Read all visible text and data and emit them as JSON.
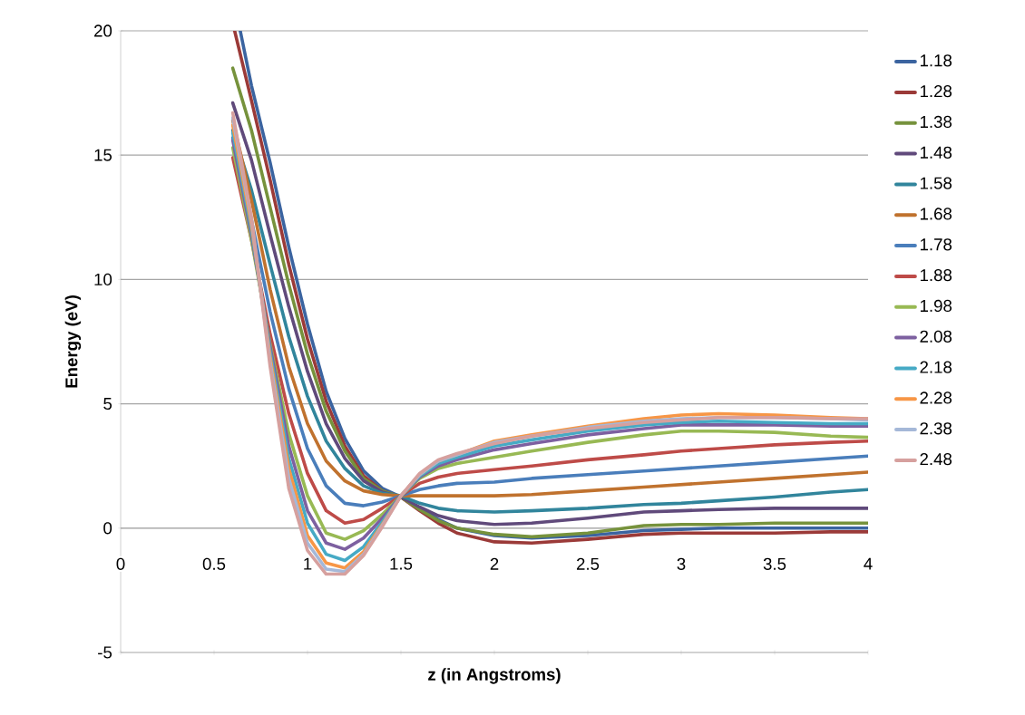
{
  "chart_data": {
    "type": "line",
    "xlabel": "z (in Angstroms)",
    "ylabel": "Energy (eV)",
    "xlim": [
      0,
      4
    ],
    "ylim": [
      -5,
      20
    ],
    "xticks": [
      0,
      0.5,
      1,
      1.5,
      2,
      2.5,
      3,
      3.5,
      4
    ],
    "yticks": [
      -5,
      0,
      5,
      10,
      15,
      20
    ],
    "grid": "y",
    "legend": "right",
    "marker": "none",
    "line_style": "solid",
    "x": [
      0.6,
      0.7,
      0.8,
      0.9,
      1.0,
      1.1,
      1.2,
      1.3,
      1.4,
      1.5,
      1.6,
      1.7,
      1.8,
      2.0,
      2.2,
      2.5,
      2.8,
      3.0,
      3.2,
      3.5,
      3.8,
      4.0
    ],
    "series": [
      {
        "name": "1.18",
        "color": "#3b64a0",
        "x": [
          0.64,
          0.7,
          0.8,
          0.9,
          1.0,
          1.1,
          1.2,
          1.3,
          1.4,
          1.5,
          1.6,
          1.7,
          1.8,
          2.0,
          2.2,
          2.5,
          2.8,
          3.0,
          3.2,
          3.5,
          3.8,
          4.0
        ],
        "values": [
          20,
          17.8,
          14.7,
          11.3,
          8.2,
          5.5,
          3.6,
          2.3,
          1.6,
          1.25,
          0.8,
          0.35,
          0.0,
          -0.3,
          -0.4,
          -0.3,
          -0.1,
          -0.05,
          0,
          0,
          0,
          0
        ]
      },
      {
        "name": "1.28",
        "color": "#9b3a38",
        "x": [
          0.61,
          0.7,
          0.8,
          0.9,
          1.0,
          1.1,
          1.2,
          1.3,
          1.4,
          1.5,
          1.6,
          1.7,
          1.8,
          2.0,
          2.2,
          2.5,
          2.8,
          3.0,
          3.2,
          3.5,
          3.8,
          4.0
        ],
        "values": [
          20,
          17.2,
          14.0,
          10.6,
          7.6,
          5.1,
          3.3,
          2.1,
          1.5,
          1.25,
          0.7,
          0.2,
          -0.2,
          -0.55,
          -0.6,
          -0.45,
          -0.25,
          -0.2,
          -0.2,
          -0.2,
          -0.15,
          -0.15
        ]
      },
      {
        "name": "1.38",
        "color": "#76923c",
        "values": [
          18.5,
          16.0,
          12.9,
          9.8,
          7.0,
          4.7,
          3.1,
          2.0,
          1.5,
          1.25,
          0.75,
          0.3,
          0.0,
          -0.25,
          -0.35,
          -0.2,
          0.1,
          0.15,
          0.15,
          0.2,
          0.2,
          0.2
        ]
      },
      {
        "name": "1.48",
        "color": "#604a7b",
        "values": [
          17.1,
          14.8,
          11.8,
          8.9,
          6.3,
          4.2,
          2.8,
          1.9,
          1.45,
          1.25,
          0.85,
          0.5,
          0.3,
          0.15,
          0.2,
          0.4,
          0.65,
          0.7,
          0.75,
          0.8,
          0.8,
          0.8
        ]
      },
      {
        "name": "1.58",
        "color": "#31859c",
        "values": [
          16.0,
          13.6,
          10.6,
          7.7,
          5.3,
          3.5,
          2.4,
          1.7,
          1.4,
          1.3,
          1.0,
          0.8,
          0.7,
          0.65,
          0.7,
          0.8,
          0.95,
          1.0,
          1.1,
          1.25,
          1.45,
          1.55
        ]
      },
      {
        "name": "1.68",
        "color": "#c0722e",
        "values": [
          16.4,
          13.2,
          9.6,
          6.5,
          4.2,
          2.7,
          1.9,
          1.5,
          1.35,
          1.3,
          1.3,
          1.3,
          1.3,
          1.3,
          1.35,
          1.5,
          1.65,
          1.75,
          1.85,
          2.0,
          2.15,
          2.25
        ]
      },
      {
        "name": "1.78",
        "color": "#4a7ebb",
        "values": [
          15.7,
          12.4,
          8.7,
          5.6,
          3.2,
          1.7,
          1.0,
          0.9,
          1.05,
          1.3,
          1.55,
          1.7,
          1.8,
          1.85,
          2.0,
          2.15,
          2.3,
          2.4,
          2.5,
          2.65,
          2.8,
          2.9
        ]
      },
      {
        "name": "1.88",
        "color": "#be4b48",
        "values": [
          14.9,
          11.6,
          7.8,
          4.6,
          2.2,
          0.7,
          0.2,
          0.35,
          0.8,
          1.3,
          1.8,
          2.05,
          2.2,
          2.35,
          2.5,
          2.75,
          2.95,
          3.1,
          3.2,
          3.35,
          3.45,
          3.5
        ]
      },
      {
        "name": "1.98",
        "color": "#98b954",
        "values": [
          15.3,
          11.6,
          7.4,
          3.8,
          1.3,
          -0.2,
          -0.45,
          -0.1,
          0.55,
          1.3,
          2.0,
          2.4,
          2.6,
          2.85,
          3.1,
          3.45,
          3.75,
          3.9,
          3.9,
          3.85,
          3.7,
          3.65
        ]
      },
      {
        "name": "2.08",
        "color": "#7d60a0",
        "values": [
          15.6,
          11.8,
          7.3,
          3.3,
          0.7,
          -0.6,
          -0.85,
          -0.4,
          0.4,
          1.3,
          2.05,
          2.5,
          2.75,
          3.15,
          3.4,
          3.75,
          4.0,
          4.15,
          4.15,
          4.15,
          4.1,
          4.1
        ]
      },
      {
        "name": "2.18",
        "color": "#46aac5",
        "values": [
          15.9,
          12.0,
          7.1,
          2.8,
          0.2,
          -1.05,
          -1.3,
          -0.75,
          0.25,
          1.3,
          2.1,
          2.6,
          2.85,
          3.3,
          3.55,
          3.9,
          4.15,
          4.25,
          4.3,
          4.25,
          4.2,
          4.2
        ]
      },
      {
        "name": "2.28",
        "color": "#f79646",
        "values": [
          16.2,
          12.2,
          6.9,
          2.4,
          -0.3,
          -1.4,
          -1.6,
          -0.95,
          0.15,
          1.3,
          2.15,
          2.7,
          2.95,
          3.5,
          3.75,
          4.1,
          4.4,
          4.55,
          4.6,
          4.55,
          4.45,
          4.4
        ]
      },
      {
        "name": "2.38",
        "color": "#a5b8d8",
        "values": [
          16.5,
          12.4,
          6.7,
          2.0,
          -0.6,
          -1.65,
          -1.75,
          -1.05,
          0.1,
          1.3,
          2.15,
          2.7,
          2.95,
          3.45,
          3.7,
          4.05,
          4.3,
          4.4,
          4.45,
          4.45,
          4.4,
          4.35
        ]
      },
      {
        "name": "2.48",
        "color": "#d6a09e",
        "values": [
          16.7,
          12.5,
          6.5,
          1.6,
          -0.9,
          -1.85,
          -1.85,
          -1.1,
          0.05,
          1.3,
          2.2,
          2.75,
          3.0,
          3.4,
          3.7,
          4.0,
          4.25,
          4.35,
          4.45,
          4.45,
          4.4,
          4.4
        ]
      }
    ]
  }
}
